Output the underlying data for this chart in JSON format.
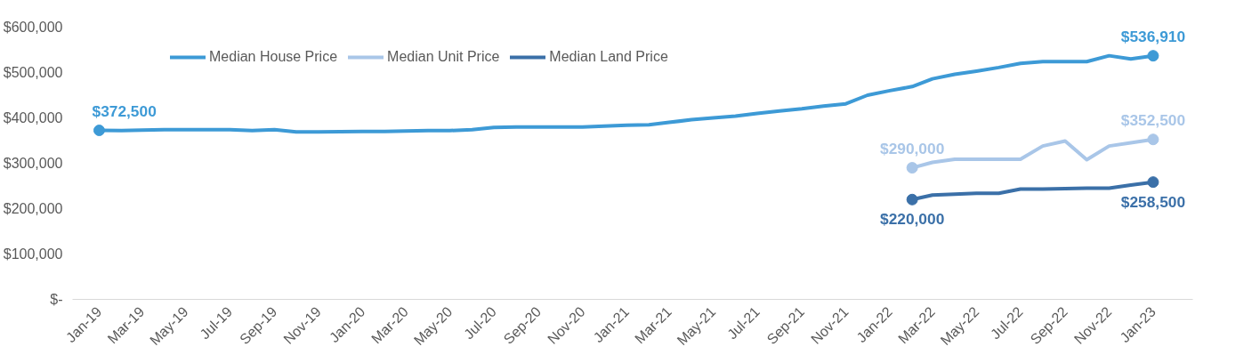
{
  "chart_data": {
    "type": "line",
    "x": [
      "2019-01",
      "2019-02",
      "2019-03",
      "2019-04",
      "2019-05",
      "2019-06",
      "2019-07",
      "2019-08",
      "2019-09",
      "2019-10",
      "2019-11",
      "2019-12",
      "2020-01",
      "2020-02",
      "2020-03",
      "2020-04",
      "2020-05",
      "2020-06",
      "2020-07",
      "2020-08",
      "2020-09",
      "2020-10",
      "2020-11",
      "2020-12",
      "2021-01",
      "2021-02",
      "2021-03",
      "2021-04",
      "2021-05",
      "2021-06",
      "2021-07",
      "2021-08",
      "2021-09",
      "2021-10",
      "2021-11",
      "2021-12",
      "2022-01",
      "2022-02",
      "2022-03",
      "2022-04",
      "2022-05",
      "2022-06",
      "2022-07",
      "2022-08",
      "2022-09",
      "2022-10",
      "2022-11",
      "2022-12",
      "2023-01"
    ],
    "series": [
      {
        "name": "Median House Price",
        "color": "#3d9ad6",
        "values": [
          372500,
          372000,
          373000,
          374000,
          374000,
          374000,
          374000,
          372000,
          374000,
          369000,
          369000,
          369500,
          370000,
          370000,
          371000,
          372000,
          372000,
          374000,
          379000,
          380000,
          380000,
          380000,
          380000,
          382000,
          384000,
          385000,
          390000,
          396000,
          400000,
          404000,
          410000,
          415000,
          420000,
          426000,
          431000,
          450000,
          460000,
          469000,
          486000,
          496000,
          503000,
          511000,
          520000,
          524000,
          524000,
          524000,
          537000,
          530000,
          536910
        ]
      },
      {
        "name": "Median Unit Price",
        "color": "#a9c6e8",
        "values": [
          null,
          null,
          null,
          null,
          null,
          null,
          null,
          null,
          null,
          null,
          null,
          null,
          null,
          null,
          null,
          null,
          null,
          null,
          null,
          null,
          null,
          null,
          null,
          null,
          null,
          null,
          null,
          null,
          null,
          null,
          null,
          null,
          null,
          null,
          null,
          null,
          null,
          290000,
          302000,
          309000,
          309000,
          309000,
          309000,
          338000,
          349000,
          308000,
          338000,
          345000,
          352500
        ]
      },
      {
        "name": "Median Land Price",
        "color": "#3b70a8",
        "values": [
          null,
          null,
          null,
          null,
          null,
          null,
          null,
          null,
          null,
          null,
          null,
          null,
          null,
          null,
          null,
          null,
          null,
          null,
          null,
          null,
          null,
          null,
          null,
          null,
          null,
          null,
          null,
          null,
          null,
          null,
          null,
          null,
          null,
          null,
          null,
          null,
          null,
          220000,
          230000,
          232000,
          234000,
          234000,
          243000,
          243000,
          244000,
          245000,
          245000,
          252000,
          258500
        ]
      }
    ],
    "annotations": [
      {
        "text": "$372,500",
        "x": "2019-01",
        "y": 372500
      },
      {
        "text": "$536,910",
        "x": "2023-01",
        "y": 536910
      },
      {
        "text": "$290,000",
        "x": "2022-02",
        "y": 290000
      },
      {
        "text": "$352,500",
        "x": "2023-01",
        "y": 352500
      },
      {
        "text": "$220,000",
        "x": "2022-02",
        "y": 220000
      },
      {
        "text": "$258,500",
        "x": "2023-01",
        "y": 258500
      }
    ],
    "xlim": [
      "2018-11-25",
      "2023-02-25"
    ],
    "xticks": [
      {
        "value": "2019-01",
        "label": "Jan-19"
      },
      {
        "value": "2019-03",
        "label": "Mar-19"
      },
      {
        "value": "2019-05",
        "label": "May-19"
      },
      {
        "value": "2019-07",
        "label": "Jul-19"
      },
      {
        "value": "2019-09",
        "label": "Sep-19"
      },
      {
        "value": "2019-11",
        "label": "Nov-19"
      },
      {
        "value": "2020-01",
        "label": "Jan-20"
      },
      {
        "value": "2020-03",
        "label": "Mar-20"
      },
      {
        "value": "2020-05",
        "label": "May-20"
      },
      {
        "value": "2020-07",
        "label": "Jul-20"
      },
      {
        "value": "2020-09",
        "label": "Sep-20"
      },
      {
        "value": "2020-11",
        "label": "Nov-20"
      },
      {
        "value": "2021-01",
        "label": "Jan-21"
      },
      {
        "value": "2021-03",
        "label": "Mar-21"
      },
      {
        "value": "2021-05",
        "label": "May-21"
      },
      {
        "value": "2021-07",
        "label": "Jul-21"
      },
      {
        "value": "2021-09",
        "label": "Sep-21"
      },
      {
        "value": "2021-11",
        "label": "Nov-21"
      },
      {
        "value": "2022-01",
        "label": "Jan-22"
      },
      {
        "value": "2022-03",
        "label": "Mar-22"
      },
      {
        "value": "2022-05",
        "label": "May-22"
      },
      {
        "value": "2022-07",
        "label": "Jul-22"
      },
      {
        "value": "2022-09",
        "label": "Sep-22"
      },
      {
        "value": "2022-11",
        "label": "Nov-22"
      },
      {
        "value": "2023-01",
        "label": "Jan-23"
      }
    ],
    "ylim": [
      0,
      600000
    ],
    "yticks": [
      {
        "value": 0,
        "label": "$-"
      },
      {
        "value": 100000,
        "label": "$100,000"
      },
      {
        "value": 200000,
        "label": "$200,000"
      },
      {
        "value": 300000,
        "label": "$300,000"
      },
      {
        "value": 400000,
        "label": "$400,000"
      },
      {
        "value": 500000,
        "label": "$500,000"
      },
      {
        "value": 600000,
        "label": "$600,000"
      }
    ],
    "grid": false,
    "legend": "top"
  }
}
